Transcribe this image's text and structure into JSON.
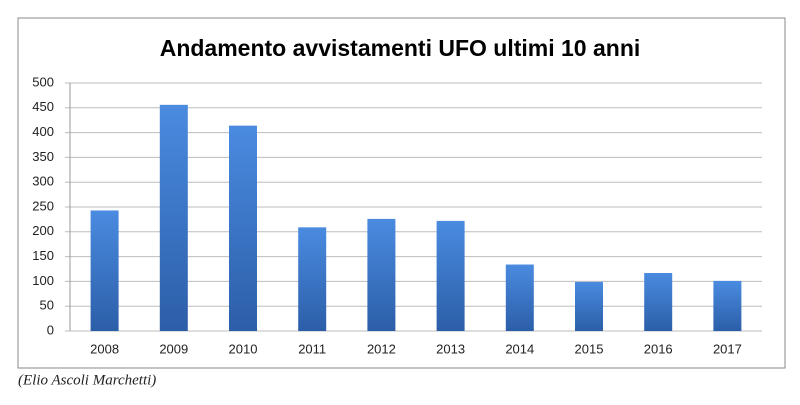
{
  "chart_data": {
    "type": "bar",
    "title": "Andamento avvistamenti UFO ultimi 10 anni",
    "categories": [
      "2008",
      "2009",
      "2010",
      "2011",
      "2012",
      "2013",
      "2014",
      "2015",
      "2016",
      "2017"
    ],
    "values": [
      243,
      456,
      414,
      209,
      226,
      222,
      134,
      99,
      117,
      101
    ],
    "color": "#3b78c8",
    "ylim": [
      0,
      500
    ],
    "yticks": [
      0,
      50,
      100,
      150,
      200,
      250,
      300,
      350,
      400,
      450,
      500
    ],
    "grid": true
  },
  "caption": "(Elio Ascoli Marchetti)"
}
